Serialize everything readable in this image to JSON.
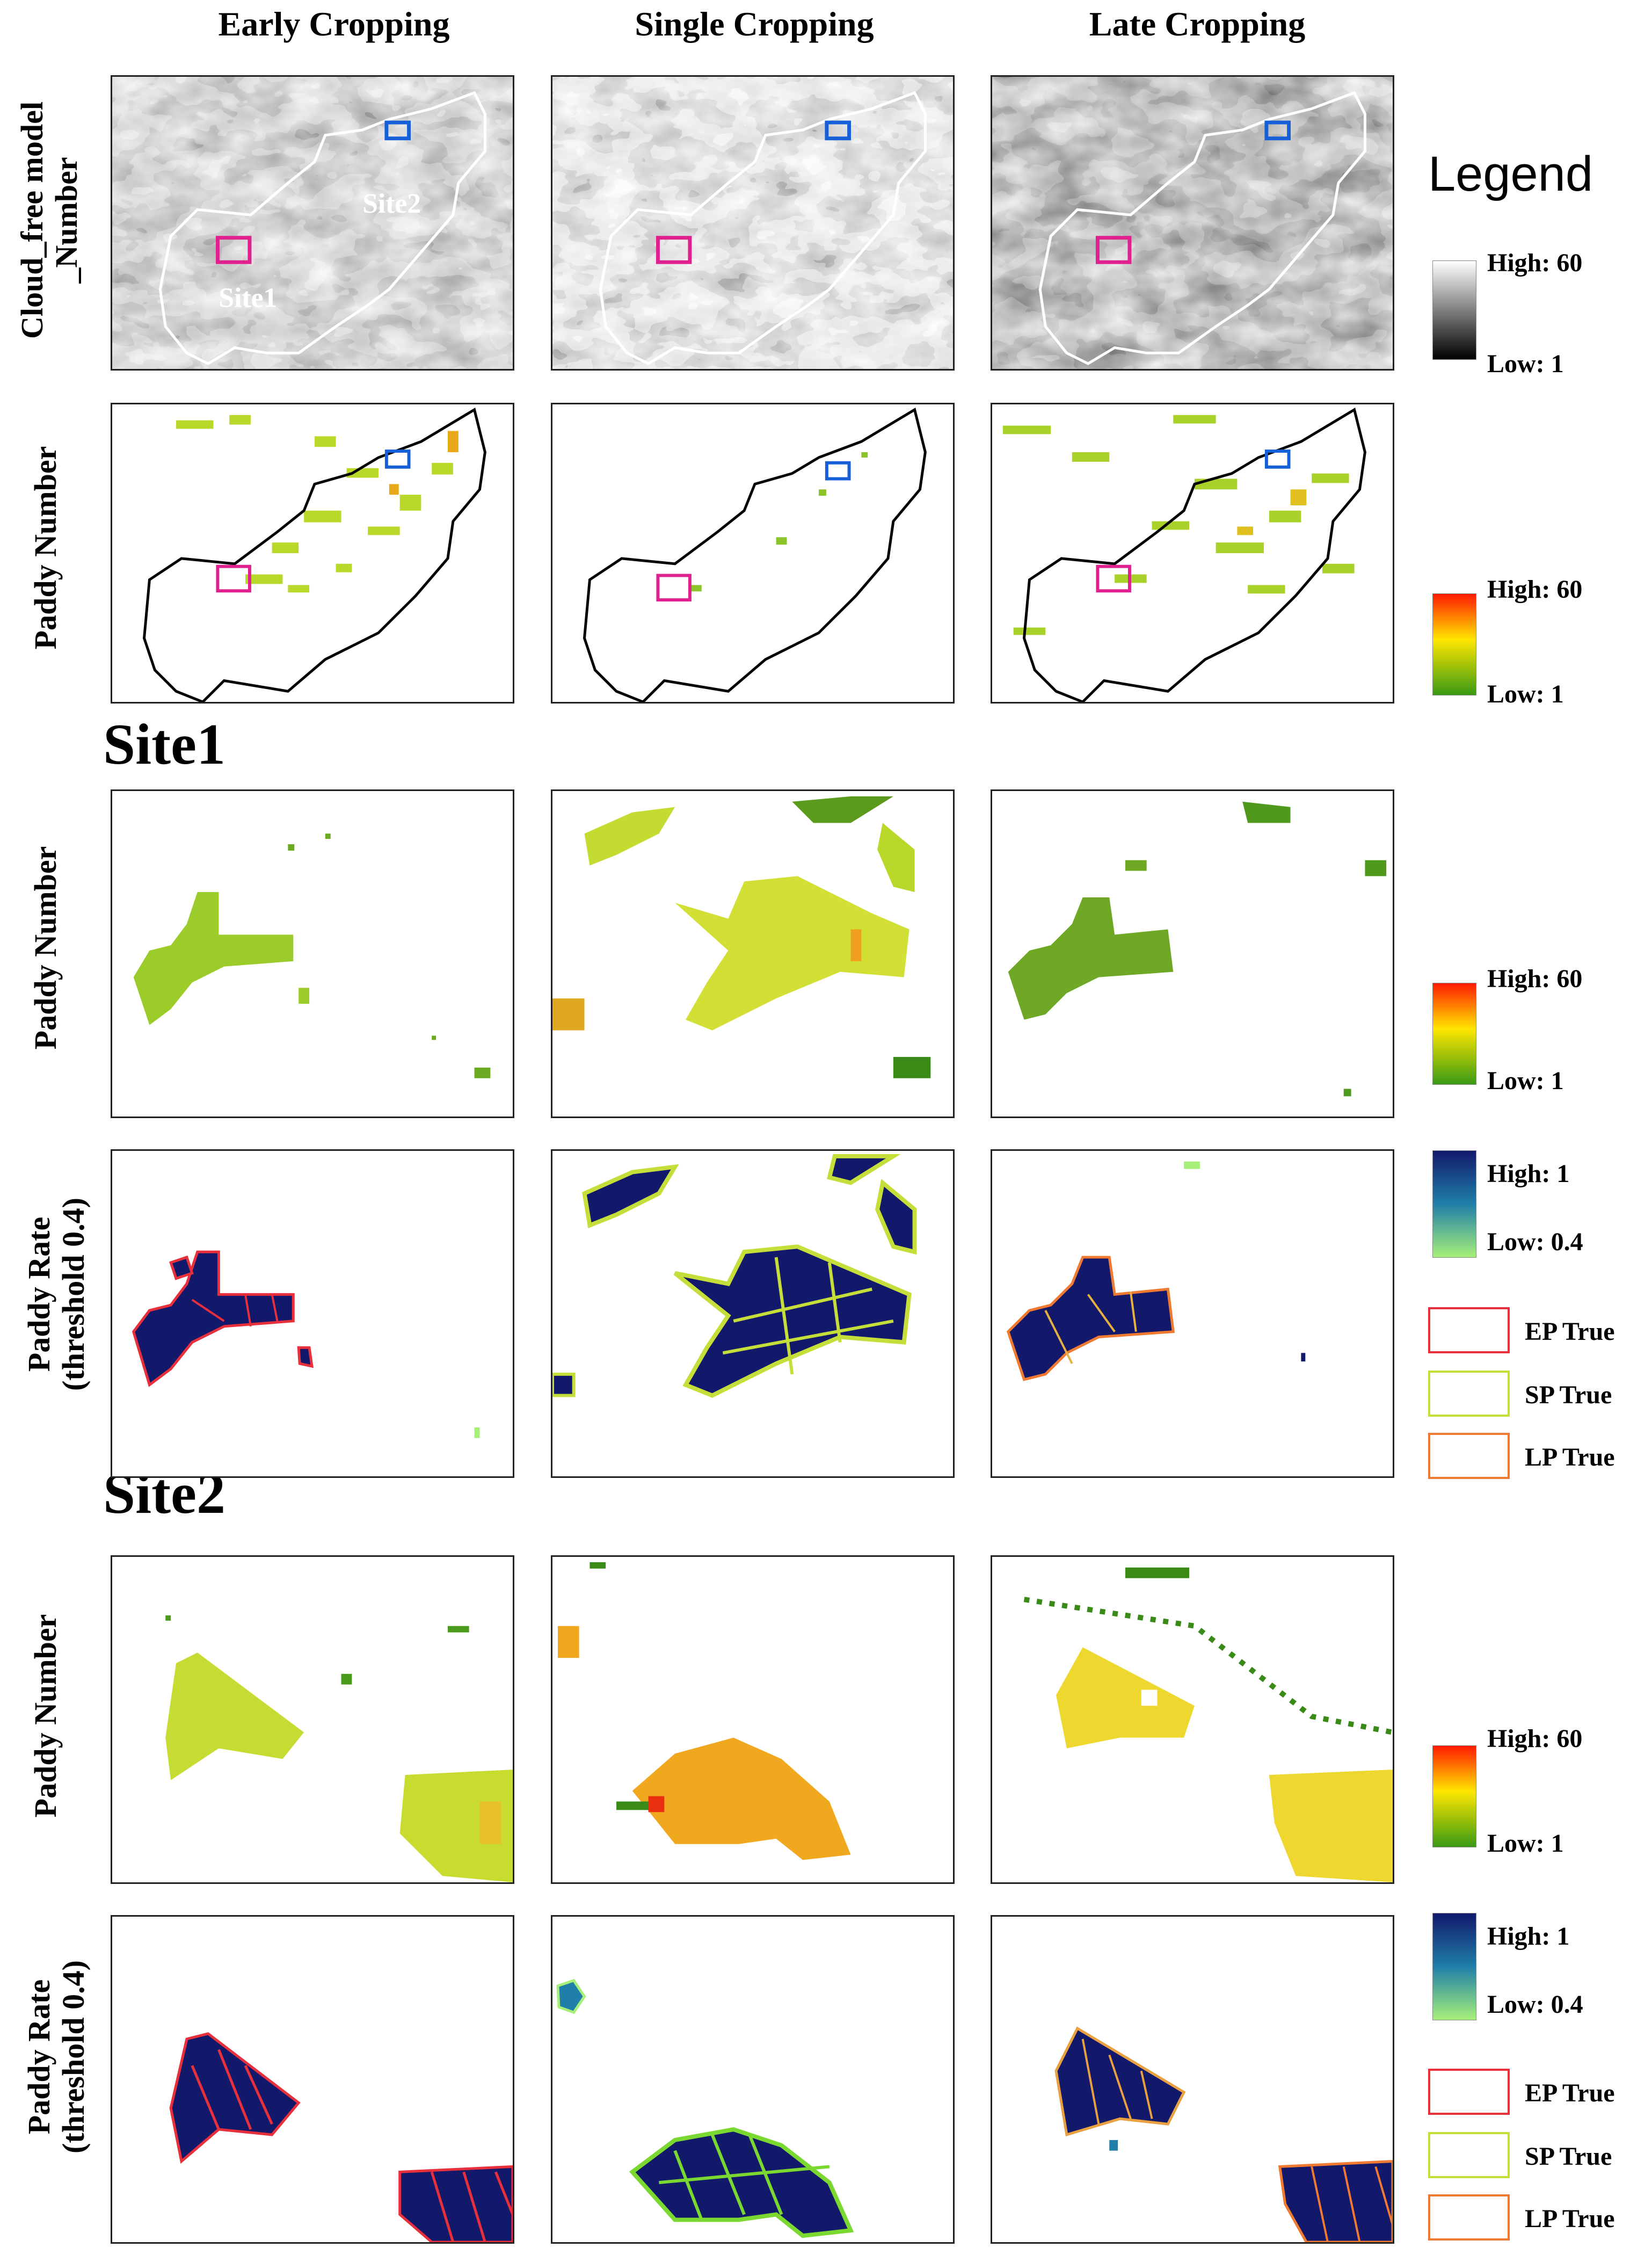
{
  "columns": [
    "Early Cropping",
    "Single Cropping",
    "Late Cropping"
  ],
  "row_labels": {
    "cloud_free": [
      "Cloud_free model",
      "_Number"
    ],
    "paddy_number": "Paddy Number",
    "paddy_rate": [
      "Paddy Rate",
      "(threshold 0.4)"
    ]
  },
  "map_labels": {
    "site1": "Site1",
    "site2": "Site2"
  },
  "sections": {
    "site1": "Site1",
    "site2": "Site2"
  },
  "legend": {
    "title": "Legend",
    "cloud_free": {
      "high": "High: 60",
      "low": "Low: 1",
      "high_value": 60,
      "low_value": 1
    },
    "paddy_number": {
      "high": "High: 60",
      "low": "Low: 1",
      "high_value": 60,
      "low_value": 1
    },
    "paddy_number_site1": {
      "high": "High: 60",
      "low": "Low: 1",
      "high_value": 60,
      "low_value": 1
    },
    "paddy_rate_site1": {
      "high": "High: 1",
      "low": "Low: 0.4",
      "high_value": 1,
      "low_value": 0.4
    },
    "paddy_number_site2": {
      "high": "High: 60",
      "low": "Low: 1",
      "high_value": 60,
      "low_value": 1
    },
    "paddy_rate_site2": {
      "high": "High: 1",
      "low": "Low: 0.4",
      "high_value": 1,
      "low_value": 0.4
    },
    "truth": [
      {
        "label": "EP True",
        "color": "#e8303c"
      },
      {
        "label": "SP True",
        "color": "#c5de3a"
      },
      {
        "label": "LP True",
        "color": "#f07a32"
      }
    ]
  },
  "colors": {
    "site1_box": "#e0208f",
    "site2_box": "#1560d8",
    "paddy_rate_dark": "#12196b",
    "paddy_number_low": "#3a9a14",
    "paddy_number_high": "#ff1a00"
  }
}
